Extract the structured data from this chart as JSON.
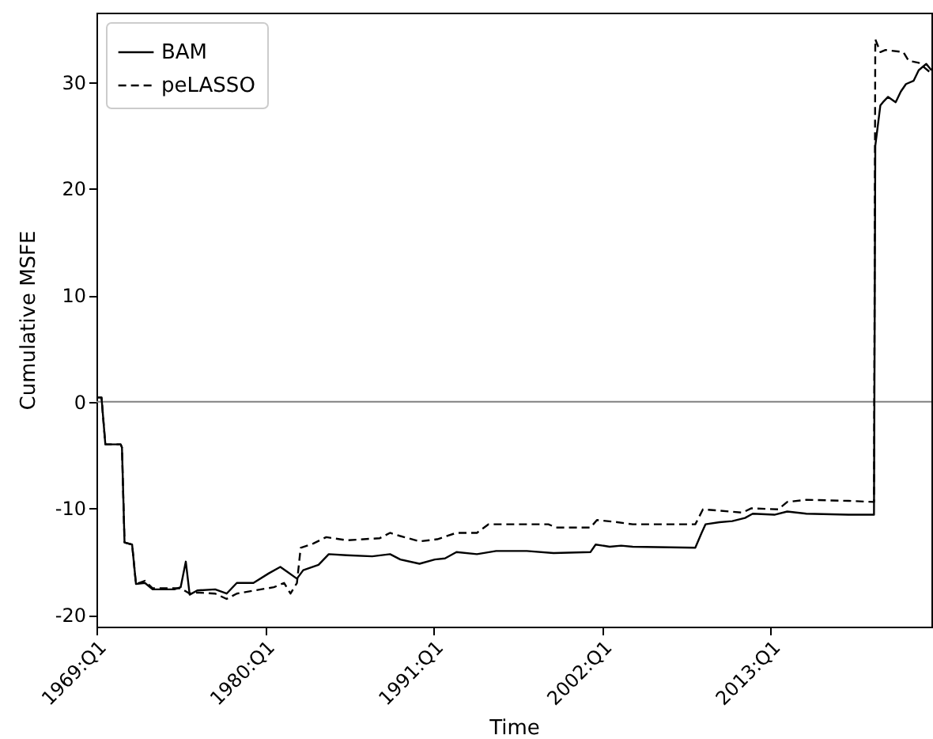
{
  "chart_data": {
    "type": "line",
    "xlabel": "Time",
    "ylabel": "Cumulative MSFE",
    "xlim": [
      "1969-01",
      "2023-07"
    ],
    "ylim": [
      -21.1,
      36.5
    ],
    "xticks": [
      {
        "value": "1969-01",
        "label": "1969:Q1"
      },
      {
        "value": "1980-01",
        "label": "1980:Q1"
      },
      {
        "value": "1991-01",
        "label": "1991:Q1"
      },
      {
        "value": "2002-01",
        "label": "2002:Q1"
      },
      {
        "value": "2013-01",
        "label": "2013:Q1"
      }
    ],
    "yticks": [
      -20,
      -10,
      0,
      10,
      20,
      30
    ],
    "grid": false,
    "legend": "top left",
    "marker": "none",
    "ref_lines": [
      {
        "axis": "y",
        "value": 0,
        "color": "#808080"
      }
    ],
    "series": [
      {
        "name": "BAM",
        "color": "#000000",
        "line_style": "solid",
        "x": [
          "1969-01",
          "1969-05",
          "1969-08",
          "1970-08",
          "1970-09",
          "1970-11",
          "1971-05",
          "1971-08",
          "1972-03",
          "1972-09",
          "1974-02",
          "1974-07",
          "1974-11",
          "1975-02",
          "1975-08",
          "1976-10",
          "1977-07",
          "1978-03",
          "1979-04",
          "1980-04",
          "1981-01",
          "1981-07",
          "1982-02",
          "1982-07",
          "1983-07",
          "1984-03",
          "1985-05",
          "1987-01",
          "1988-03",
          "1988-11",
          "1990-02",
          "1991-02",
          "1991-10",
          "1992-07",
          "1993-11",
          "1995-02",
          "1997-02",
          "1998-11",
          "2001-04",
          "2001-08",
          "2002-07",
          "2003-04",
          "2004-01",
          "2008-02",
          "2008-07",
          "2008-10",
          "2009-09",
          "2010-07",
          "2011-05",
          "2011-11",
          "2013-04",
          "2014-02",
          "2015-05",
          "2018-02",
          "2019-10",
          "2019-11",
          "2020-03",
          "2020-05",
          "2020-09",
          "2021-03",
          "2021-07",
          "2021-11",
          "2022-05",
          "2022-09",
          "2023-03",
          "2023-07"
        ],
        "values": [
          0.4,
          0.4,
          -4.0,
          -4.0,
          -4.3,
          -13.2,
          -13.4,
          -17.1,
          -17.0,
          -17.6,
          -17.6,
          -17.4,
          -15.0,
          -18.1,
          -17.7,
          -17.6,
          -18.0,
          -17.0,
          -17.0,
          -16.1,
          -15.5,
          -16.0,
          -16.6,
          -15.8,
          -15.3,
          -14.3,
          -14.4,
          -14.5,
          -14.3,
          -14.8,
          -15.2,
          -14.8,
          -14.7,
          -14.1,
          -14.3,
          -14.0,
          -14.0,
          -14.2,
          -14.1,
          -13.4,
          -13.6,
          -13.5,
          -13.6,
          -13.7,
          -12.3,
          -11.5,
          -11.3,
          -11.2,
          -10.9,
          -10.5,
          -10.6,
          -10.3,
          -10.5,
          -10.6,
          -10.6,
          24.0,
          27.8,
          28.1,
          28.6,
          28.1,
          29.1,
          29.8,
          30.1,
          31.1,
          31.7,
          31.1
        ]
      },
      {
        "name": "peLASSO",
        "color": "#000000",
        "line_style": "dashed",
        "x": [
          "1969-01",
          "1969-05",
          "1969-08",
          "1970-08",
          "1970-09",
          "1970-11",
          "1971-05",
          "1971-08",
          "1972-03",
          "1972-09",
          "1974-07",
          "1975-02",
          "1975-08",
          "1976-10",
          "1977-07",
          "1978-03",
          "1979-05",
          "1980-08",
          "1981-04",
          "1981-09",
          "1982-02",
          "1982-05",
          "1983-03",
          "1984-01",
          "1985-05",
          "1987-07",
          "1988-03",
          "1988-11",
          "1990-02",
          "1991-04",
          "1992-07",
          "1993-11",
          "1994-08",
          "1998-07",
          "1999-01",
          "2001-04",
          "2001-09",
          "2003-01",
          "2004-01",
          "2008-02",
          "2008-08",
          "2009-07",
          "2011-03",
          "2011-10",
          "2013-07",
          "2014-02",
          "2015-05",
          "2018-02",
          "2019-10",
          "2019-11",
          "2020-03",
          "2020-07",
          "2021-09",
          "2022-01",
          "2022-09",
          "2023-07"
        ],
        "values": [
          0.4,
          0.4,
          -4.0,
          -4.0,
          -4.3,
          -13.2,
          -13.4,
          -17.1,
          -16.8,
          -17.5,
          -17.5,
          -18.0,
          -17.9,
          -18.0,
          -18.5,
          -18.0,
          -17.7,
          -17.4,
          -17.0,
          -18.0,
          -17.0,
          -13.7,
          -13.3,
          -12.7,
          -13.0,
          -12.8,
          -12.3,
          -12.6,
          -13.1,
          -12.9,
          -12.3,
          -12.3,
          -11.5,
          -11.5,
          -11.8,
          -11.8,
          -11.1,
          -11.3,
          -11.5,
          -11.5,
          -10.1,
          -10.2,
          -10.4,
          -10.0,
          -10.1,
          -9.4,
          -9.2,
          -9.3,
          -9.4,
          34.0,
          32.8,
          33.0,
          32.8,
          32.0,
          31.8,
          30.8
        ]
      }
    ]
  }
}
